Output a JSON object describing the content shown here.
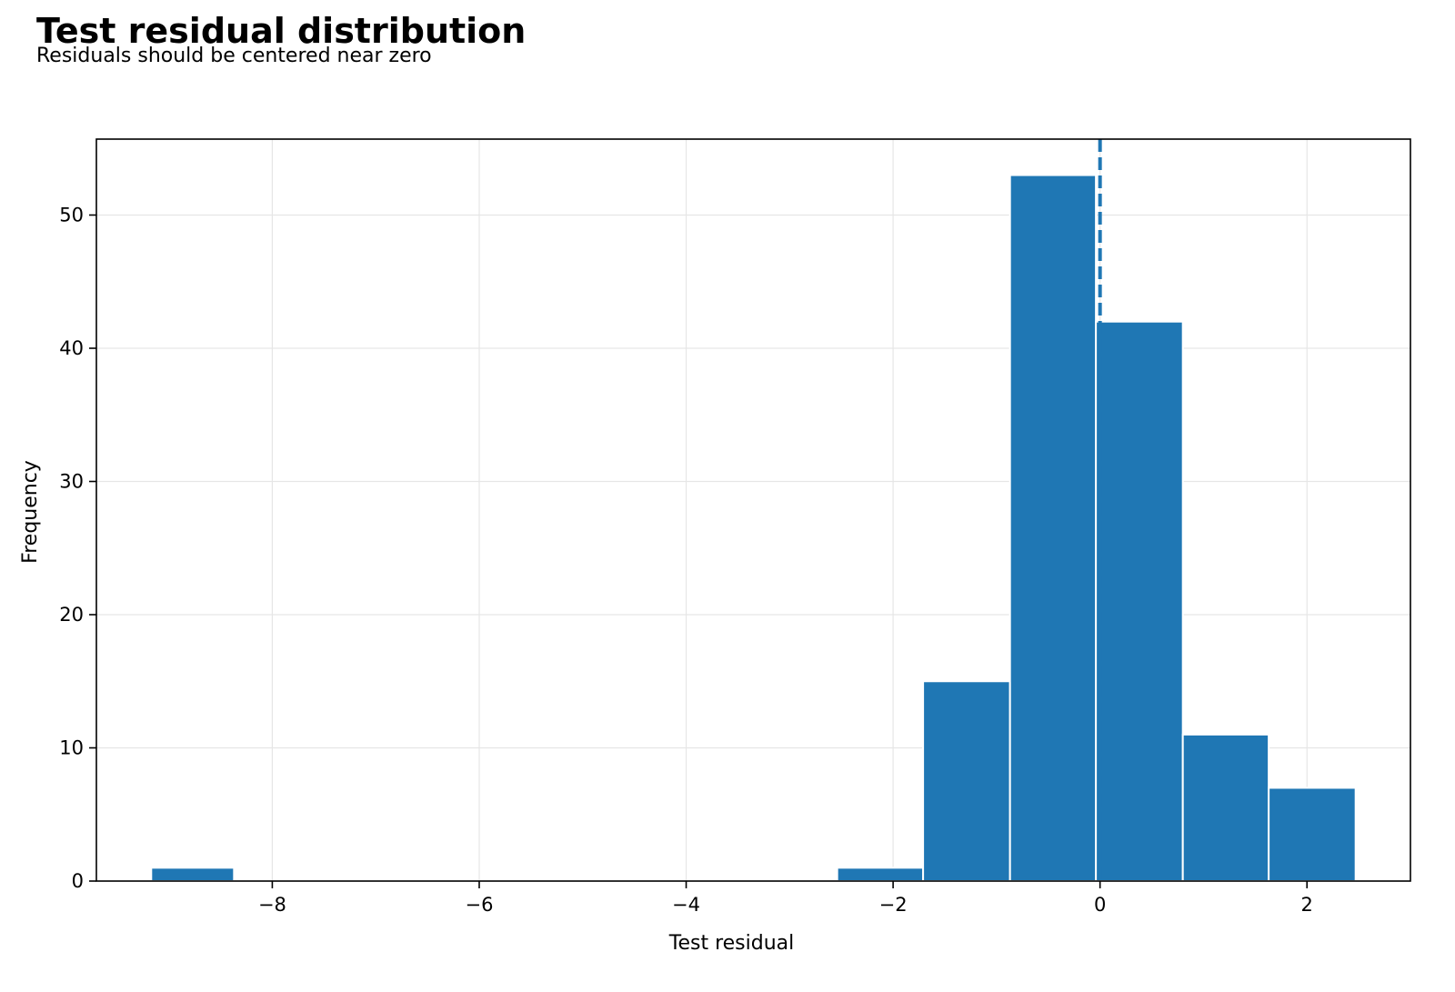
{
  "header": {
    "title": "Test residual distribution",
    "subtitle": "Residuals should be centered near zero"
  },
  "chart_data": {
    "type": "bar",
    "histogram": true,
    "xlabel": "Test residual",
    "ylabel": "Frequency",
    "xlim": [
      -9.7,
      3.0
    ],
    "ylim": [
      0,
      55.7
    ],
    "x_ticks": [
      -8,
      -6,
      -4,
      -2,
      0,
      2
    ],
    "x_tick_labels": [
      "−8",
      "−6",
      "−4",
      "−2",
      "0",
      "2"
    ],
    "y_ticks": [
      0,
      10,
      20,
      30,
      40,
      50
    ],
    "y_tick_labels": [
      "0",
      "10",
      "20",
      "30",
      "40",
      "50"
    ],
    "bins": [
      {
        "x0": -9.17,
        "x1": -8.37,
        "count": 1
      },
      {
        "x0": -8.37,
        "x1": -7.54,
        "count": 0
      },
      {
        "x0": -7.54,
        "x1": -6.71,
        "count": 0
      },
      {
        "x0": -6.71,
        "x1": -5.87,
        "count": 0
      },
      {
        "x0": -5.87,
        "x1": -5.04,
        "count": 0
      },
      {
        "x0": -5.04,
        "x1": -4.21,
        "count": 0
      },
      {
        "x0": -4.21,
        "x1": -3.37,
        "count": 0
      },
      {
        "x0": -3.37,
        "x1": -2.54,
        "count": 0
      },
      {
        "x0": -2.54,
        "x1": -1.71,
        "count": 1
      },
      {
        "x0": -1.71,
        "x1": -0.87,
        "count": 15
      },
      {
        "x0": -0.87,
        "x1": -0.04,
        "count": 53
      },
      {
        "x0": -0.04,
        "x1": 0.8,
        "count": 42
      },
      {
        "x0": 0.8,
        "x1": 1.63,
        "count": 11
      },
      {
        "x0": 1.63,
        "x1": 2.47,
        "count": 7
      }
    ],
    "reference_line": {
      "x": 0,
      "style": "dashed"
    },
    "grid": true,
    "colors": {
      "bar": "#1f77b4",
      "bar_edge": "#ffffff",
      "reference_line": "#1f77b4",
      "grid": "#e6e6e6"
    }
  }
}
